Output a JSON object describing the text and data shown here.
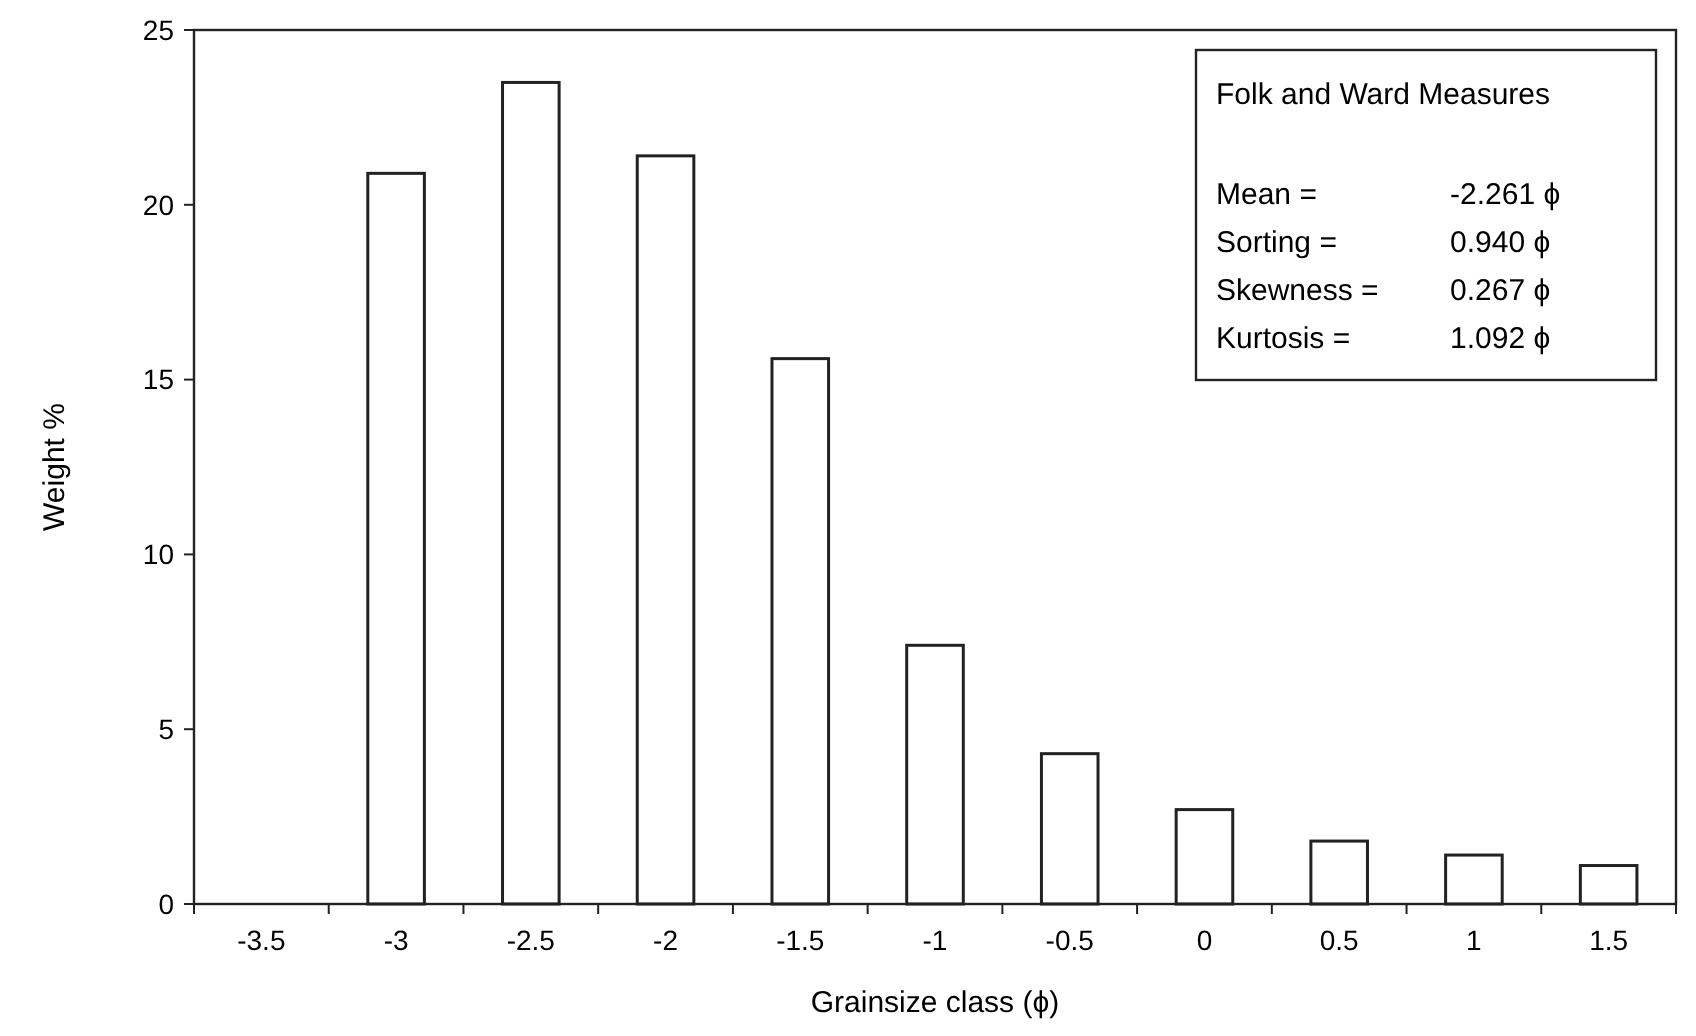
{
  "chart_data": {
    "type": "bar",
    "xlabel": "Grainsize class (ϕ)",
    "ylabel": "Weight %",
    "categories": [
      "-3.5",
      "-3",
      "-2.5",
      "-2",
      "-1.5",
      "-1",
      "-0.5",
      "0",
      "0.5",
      "1",
      "1.5"
    ],
    "values": [
      null,
      20.9,
      23.5,
      21.4,
      15.6,
      7.4,
      4.3,
      2.7,
      1.8,
      1.4,
      1.1
    ],
    "color": "#ffffff",
    "ylim": [
      0,
      25
    ],
    "yticks": [
      0,
      5,
      10,
      15,
      20,
      25
    ],
    "grid": false,
    "annotations": [
      "Folk and Ward Measures",
      "Mean =",
      "-2.261 ϕ",
      "Sorting =",
      "0.940 ϕ",
      "Skewness =",
      "0.267 ϕ",
      "Kurtosis =",
      "1.092 ϕ"
    ]
  }
}
